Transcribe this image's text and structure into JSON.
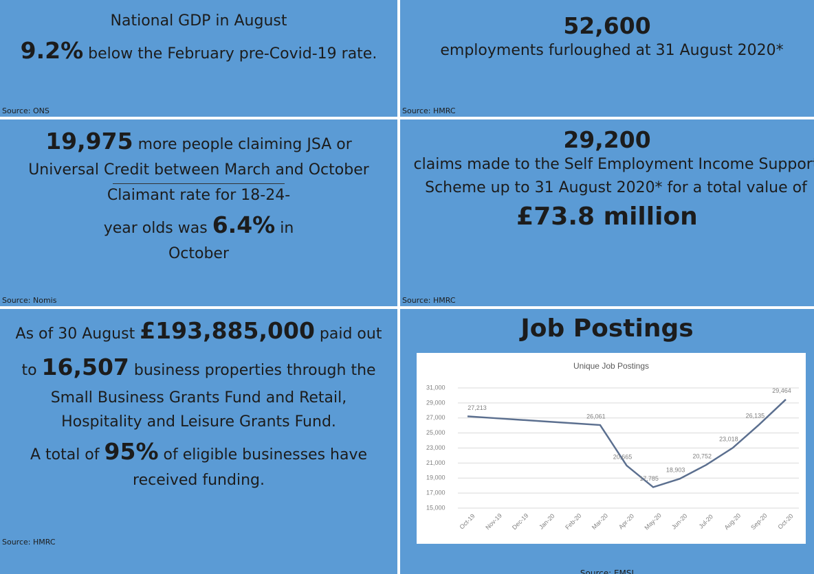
{
  "panels": [
    {
      "heading": "National GDP in August",
      "figure": "9.2%",
      "text": "below the February pre-Covid-19 rate.",
      "source": "Source: ONS"
    },
    {
      "figure": "52,600",
      "text": "employments furloughed at 31 August 2020*",
      "source": "Source: HMRC"
    },
    {
      "figure": "19,975",
      "text": "more people claiming JSA or Universal Credit between March and October",
      "text2_before": "Claimant rate for 18-24-year olds was",
      "figure2": "6.4%",
      "text2_after": "in October",
      "source": "Source: Nomis"
    },
    {
      "figure": "29,200",
      "text": "claims made to the Self Employment Income Support Scheme up to 31 August 2020* for a total value of",
      "figure2": "£73.8 million",
      "source": "Source: HMRC"
    },
    {
      "text_a": "As of 30 August",
      "figure": "£193,885,000",
      "text_b": "paid out to",
      "figure2": "16,507",
      "text_c": "business properties through the Small Business Grants Fund and Retail, Hospitality and Leisure Grants Fund.",
      "text_d": "A total of",
      "figure3": "95%",
      "text_e": "of eligible businesses have received funding.",
      "source": "Source: HMRC"
    },
    {
      "heading": "Job Postings",
      "source": "Source: EMSI"
    }
  ],
  "chart_data": {
    "type": "line",
    "title": "Unique Job Postings",
    "categories": [
      "Oct-19",
      "Nov-19",
      "Dec-19",
      "Jan-20",
      "Feb-20",
      "Mar-20",
      "Apr-20",
      "May-20",
      "Jun-20",
      "Jul-20",
      "Aug-20",
      "Sep-20",
      "Oct-20"
    ],
    "values": [
      27213,
      26983,
      26752,
      26522,
      26291,
      26061,
      20665,
      17785,
      18903,
      20752,
      23018,
      26135,
      29464
    ],
    "value_labels": [
      "27,213",
      null,
      null,
      null,
      null,
      "26,061",
      "20,665",
      "17,785",
      "18,903",
      "20,752",
      "23,018",
      "26,135",
      "29,464"
    ],
    "color": "#5b6f8f",
    "ylim": [
      15000,
      31000
    ],
    "yticks": [
      {
        "value": 15000,
        "label": "15,000"
      },
      {
        "value": 17000,
        "label": "17,000"
      },
      {
        "value": 19000,
        "label": "19,000"
      },
      {
        "value": 21000,
        "label": "21,000"
      },
      {
        "value": 23000,
        "label": "23,000"
      },
      {
        "value": 25000,
        "label": "25,000"
      },
      {
        "value": 27000,
        "label": "27,000"
      },
      {
        "value": 29000,
        "label": "29,000"
      },
      {
        "value": 31000,
        "label": "31,000"
      }
    ],
    "grid": true
  }
}
